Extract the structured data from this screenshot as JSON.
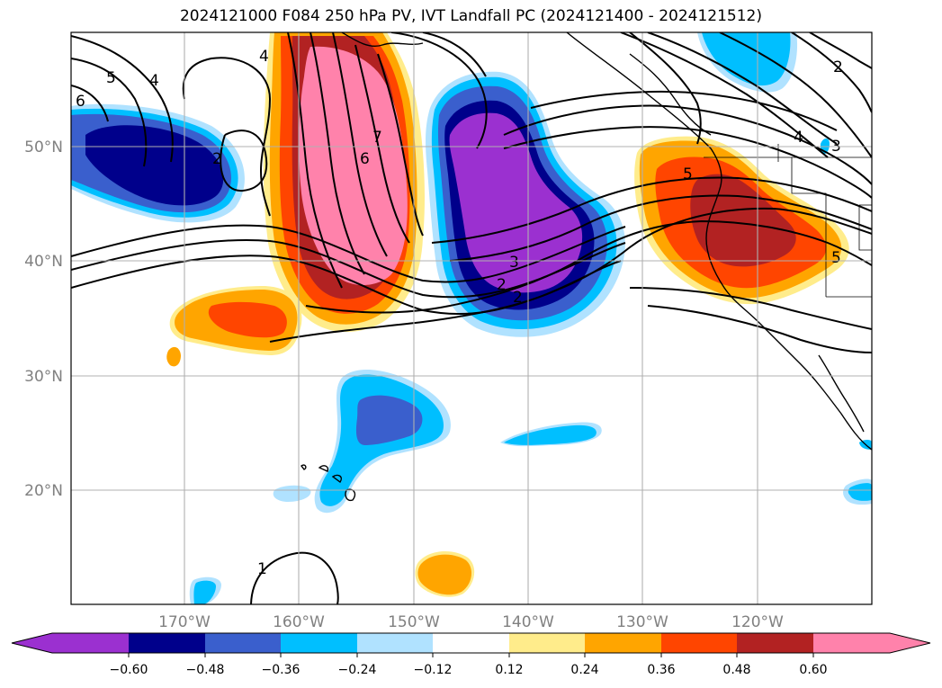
{
  "title": "2024121000 F084 250 hPa PV, IVT Landfall PC (2024121400 - 2024121512)",
  "map": {
    "lon_labels": [
      "170°W",
      "160°W",
      "150°W",
      "140°W",
      "130°W",
      "120°W"
    ],
    "lat_labels": [
      "50°N",
      "40°N",
      "30°N",
      "20°N"
    ],
    "grid": true
  },
  "contour_labels": [
    "5",
    "4",
    "6",
    "2",
    "4",
    "7",
    "6",
    "3",
    "2",
    "2",
    "5",
    "4",
    "3",
    "2",
    "5",
    "1"
  ],
  "colorbar": {
    "ticks": [
      "−0.60",
      "−0.48",
      "−0.36",
      "−0.24",
      "−0.12",
      "0.12",
      "0.24",
      "0.36",
      "0.48",
      "0.60"
    ],
    "colors": [
      "#9b30d0",
      "#00008b",
      "#3a5fcd",
      "#00bfff",
      "#b0e2ff",
      "#ffffff",
      "#ffec8b",
      "#ffa500",
      "#ff4500",
      "#b22222",
      "#ff82ab"
    ],
    "extend": "both"
  }
}
